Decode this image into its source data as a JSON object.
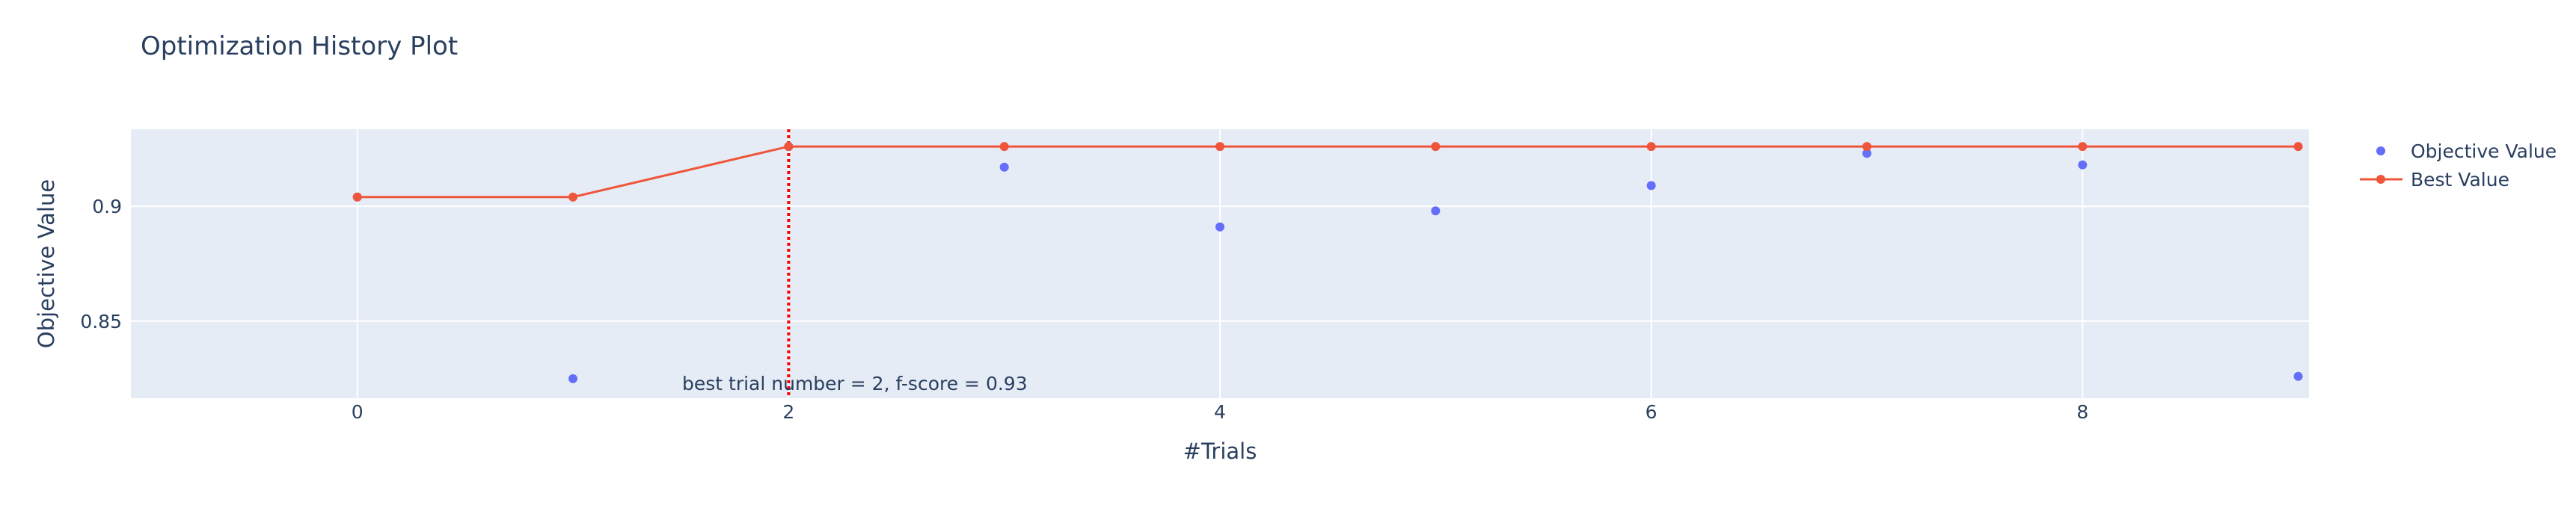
{
  "chart_data": {
    "type": "scatter",
    "title": "Optimization History Plot",
    "xlabel": "#Trials",
    "ylabel": "Objective Value",
    "xlim": [
      -1.05,
      9.05
    ],
    "ylim": [
      0.8165,
      0.9335
    ],
    "x_ticks": [
      0,
      2,
      4,
      6,
      8
    ],
    "x_tick_labels": [
      "0",
      "2",
      "4",
      "6",
      "8"
    ],
    "y_ticks": [
      0.85,
      0.9
    ],
    "y_tick_labels": [
      "0.85",
      "0.9"
    ],
    "grid": true,
    "legend_position": "top-right",
    "series": [
      {
        "name": "Objective Value",
        "mode": "markers",
        "color": "#636efa",
        "x": [
          0,
          1,
          2,
          3,
          4,
          5,
          6,
          7,
          8,
          9
        ],
        "y": [
          0.904,
          0.825,
          0.926,
          0.917,
          0.891,
          0.898,
          0.909,
          0.923,
          0.918,
          0.826
        ]
      },
      {
        "name": "Best Value",
        "mode": "lines+markers",
        "color": "#ef553b",
        "x": [
          0,
          1,
          2,
          3,
          4,
          5,
          6,
          7,
          8,
          9
        ],
        "y": [
          0.904,
          0.904,
          0.926,
          0.926,
          0.926,
          0.926,
          0.926,
          0.926,
          0.926,
          0.926
        ]
      }
    ],
    "reference_line": {
      "x": 2,
      "color": "#ff0000",
      "style": "dotted"
    },
    "annotation": {
      "text": "best trial number = 2, f-score = 0.93",
      "x": 2
    }
  }
}
